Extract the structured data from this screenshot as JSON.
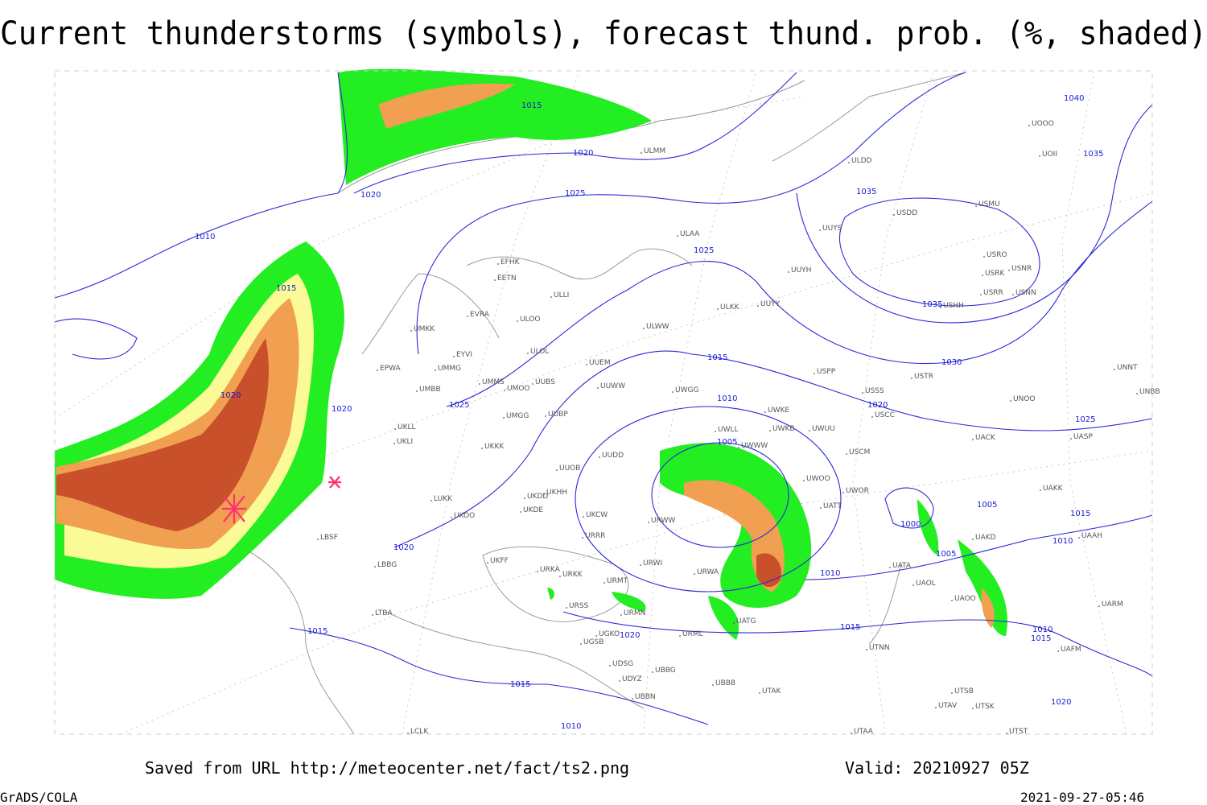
{
  "title": "Current thunderstorms (symbols), forecast thund. prob. (%, shaded)",
  "footer": {
    "source": "Saved from URL http://meteocenter.net/fact/ts2.png",
    "valid": "Valid: 20210927 05Z",
    "software": "GrADS/COLA",
    "timestamp": "2021-09-27-05:46"
  },
  "map": {
    "isobar_labels": [
      "1015",
      "1040",
      "1035",
      "1020",
      "1020",
      "1025",
      "1035",
      "1010",
      "1025",
      "1015",
      "1035",
      "1030",
      "1015",
      "1020",
      "1010",
      "1020",
      "1020",
      "1025",
      "1025",
      "1005",
      "1005",
      "1015",
      "1000",
      "1010",
      "1020",
      "1005",
      "1010",
      "1015",
      "1010",
      "1015",
      "1015",
      "1020",
      "1015",
      "1020",
      "1010"
    ],
    "stations": [
      "ULMM",
      "ULDD",
      "UOOO",
      "UOII",
      "USMU",
      "USDD",
      "UUYS",
      "ULAA",
      "USRO",
      "USRK",
      "USNR",
      "UUYH",
      "USRR",
      "USNN",
      "EFHK",
      "EETN",
      "ULLI",
      "ULKK",
      "UUYY",
      "USHH",
      "EVRA",
      "ULOO",
      "UMKK",
      "ULWW",
      "EYVI",
      "ULOL",
      "UUEM",
      "UMMG",
      "EPWA",
      "USPP",
      "USTR",
      "UNNT",
      "UMMS",
      "UUBS",
      "UMOO",
      "UUWW",
      "UWGG",
      "USSS",
      "UNOO",
      "UNBB",
      "UMBB",
      "UWKE",
      "USCC",
      "UMGG",
      "UUBP",
      "UKLL",
      "UWKB",
      "UWUU",
      "UWLL",
      "UACK",
      "UASP",
      "UKLI",
      "UKKK",
      "UWWW",
      "USCM",
      "UUOB",
      "UUDD",
      "UWOO",
      "UAKK",
      "UKHH",
      "UKDD",
      "UKDE",
      "UWOR",
      "UATT",
      "LUKK",
      "UKOO",
      "UKCW",
      "URWW",
      "UAKD",
      "URRR",
      "UAAH",
      "LBSF",
      "UKFF",
      "URWI",
      "UATA",
      "UAOL",
      "LBBG",
      "URKA",
      "URKK",
      "URWA",
      "URMT",
      "UAOO",
      "UARM",
      "URSS",
      "URMN",
      "UATG",
      "LTBA",
      "UGKO",
      "URML",
      "UGSB",
      "UTNN",
      "UAFM",
      "UDSG",
      "UDYZ",
      "UBBG",
      "UBBB",
      "UTSB",
      "UTAK",
      "UBBN",
      "UTAV",
      "UTSK",
      "UTAA",
      "LCLK",
      "UTST"
    ]
  }
}
